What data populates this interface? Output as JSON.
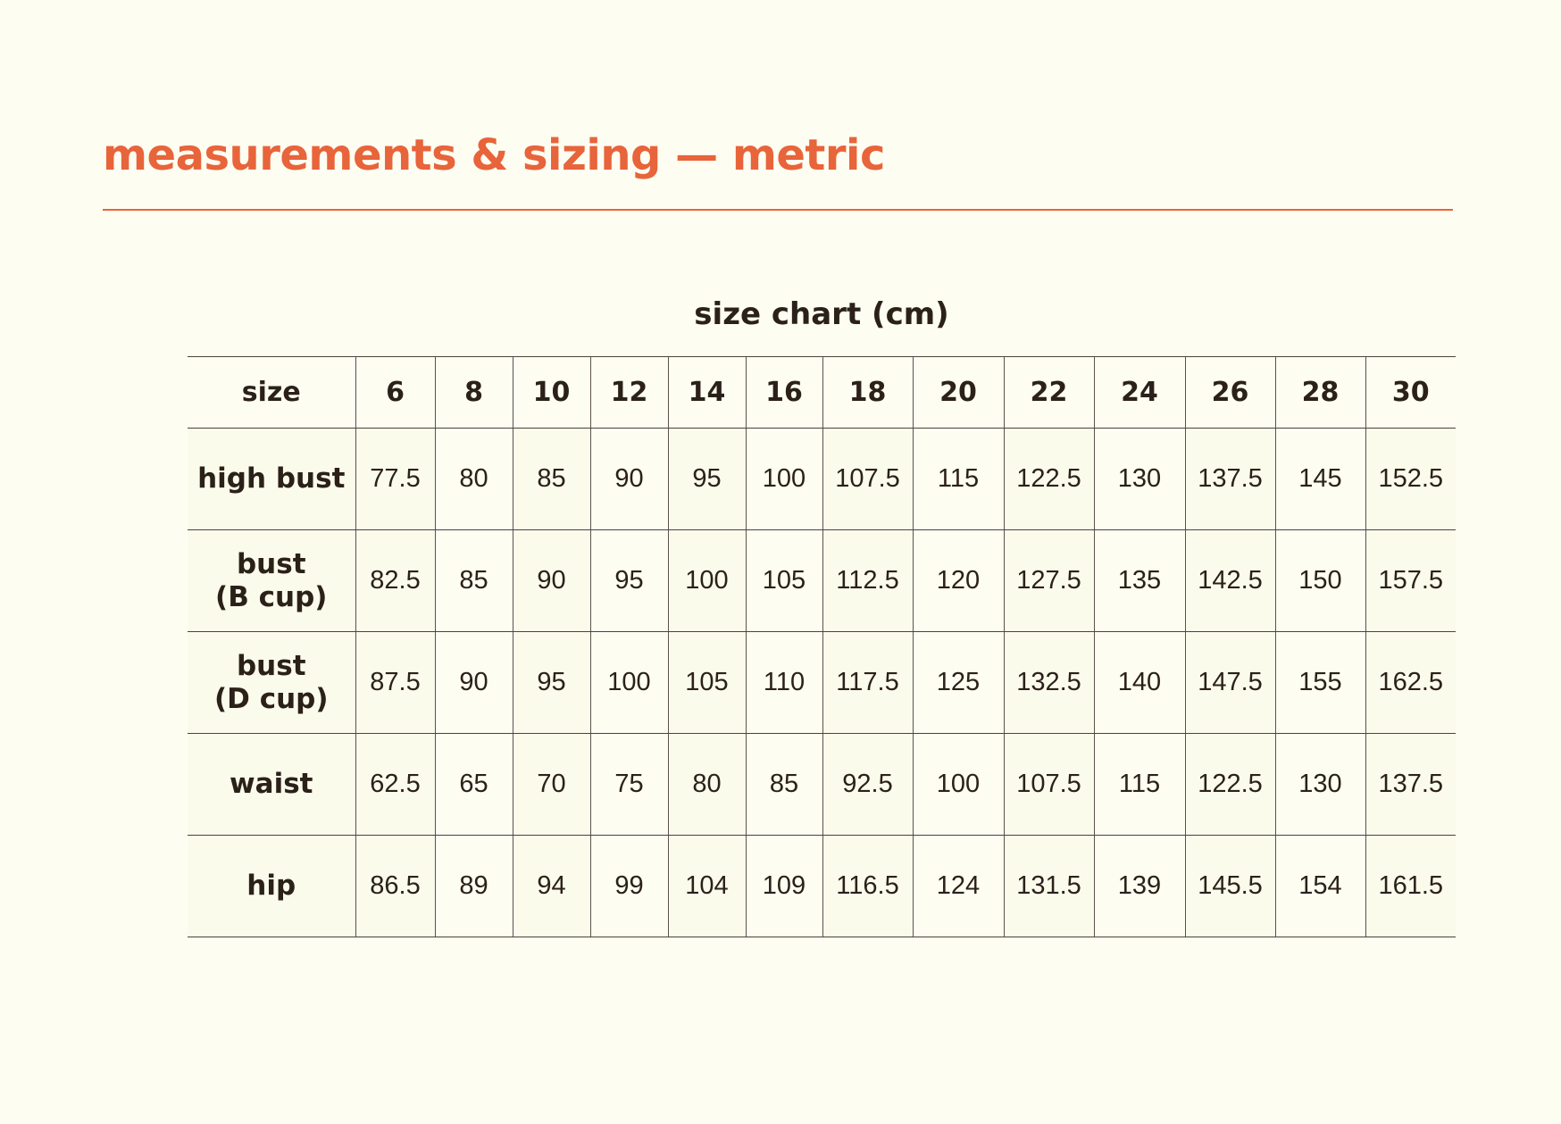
{
  "title": "measurements & sizing — metric",
  "accent_color": "#e8643a",
  "chart_data": {
    "type": "table",
    "title": "size chart (cm)",
    "header_label": "size",
    "columns": [
      "6",
      "8",
      "10",
      "12",
      "14",
      "16",
      "18",
      "20",
      "22",
      "24",
      "26",
      "28",
      "30"
    ],
    "rows": [
      {
        "label": [
          "high bust"
        ],
        "values": [
          "77.5",
          "80",
          "85",
          "90",
          "95",
          "100",
          "107.5",
          "115",
          "122.5",
          "130",
          "137.5",
          "145",
          "152.5"
        ]
      },
      {
        "label": [
          "bust",
          "(B cup)"
        ],
        "values": [
          "82.5",
          "85",
          "90",
          "95",
          "100",
          "105",
          "112.5",
          "120",
          "127.5",
          "135",
          "142.5",
          "150",
          "157.5"
        ]
      },
      {
        "label": [
          "bust",
          "(D cup)"
        ],
        "values": [
          "87.5",
          "90",
          "95",
          "100",
          "105",
          "110",
          "117.5",
          "125",
          "132.5",
          "140",
          "147.5",
          "155",
          "162.5"
        ]
      },
      {
        "label": [
          "waist"
        ],
        "values": [
          "62.5",
          "65",
          "70",
          "75",
          "80",
          "85",
          "92.5",
          "100",
          "107.5",
          "115",
          "122.5",
          "130",
          "137.5"
        ]
      },
      {
        "label": [
          "hip"
        ],
        "values": [
          "86.5",
          "89",
          "94",
          "99",
          "104",
          "109",
          "116.5",
          "124",
          "131.5",
          "139",
          "145.5",
          "154",
          "161.5"
        ]
      }
    ]
  }
}
